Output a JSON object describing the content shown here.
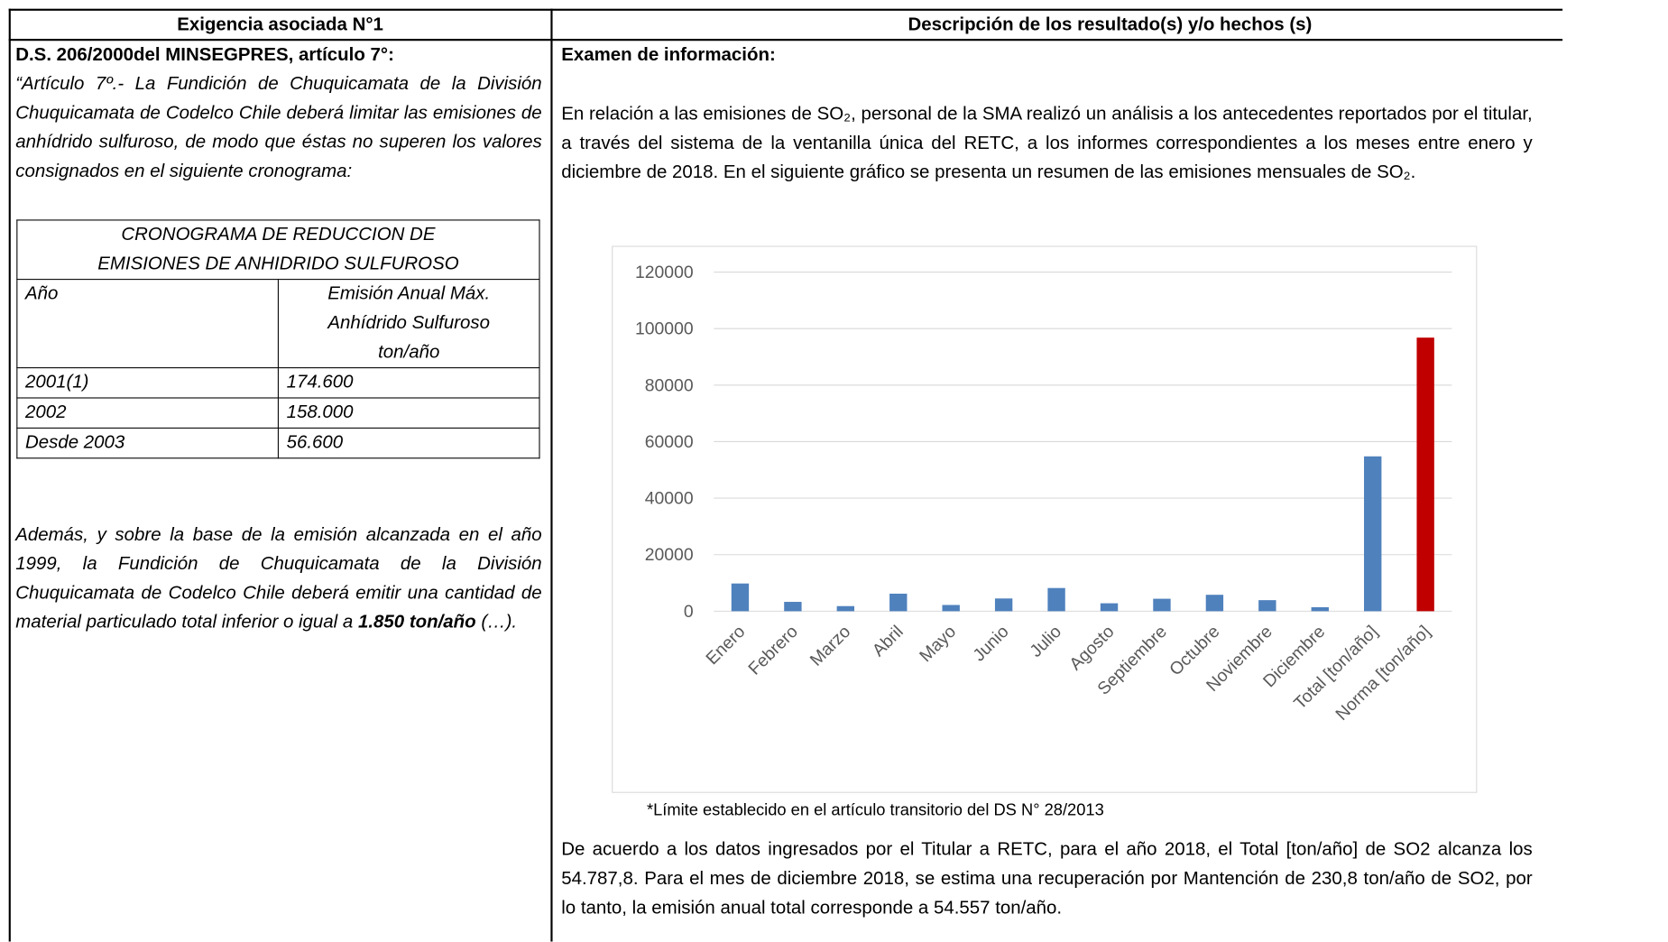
{
  "table": {
    "headers": [
      "Exigencia asociada N°1",
      "Descripción de los resultado(s) y/o hechos (s)"
    ]
  },
  "left": {
    "heading": "D.S. 206/2000del MINSEGPRES, artículo 7°:",
    "quote": "“Artículo 7º.- La Fundición de Chuquicamata de la División Chuquicamata de Codelco Chile deberá limitar las emisiones de anhídrido sulfuroso, de modo que éstas no superen los valores consignados en el siguiente cronograma:",
    "schedule": {
      "title": "CRONOGRAMA DE REDUCCION DE EMISIONES DE ANHIDRIDO SULFUROSO",
      "header": [
        "Año",
        "Emisión Anual Máx. Anhídrido Sulfuroso ton/año"
      ],
      "rows": [
        [
          "2001(1)",
          "174.600"
        ],
        [
          "2002",
          "158.000"
        ],
        [
          "Desde 2003",
          "56.600"
        ]
      ]
    },
    "note": [
      "Además, y sobre la base de la emisión alcanzada en el año 1999, la Fundición de Chuquicamata de la División Chuquicamata de Codelco Chile deberá emitir una cantidad de material particulado total inferior o igual a ",
      "1.850 ton/año",
      " (…)."
    ]
  },
  "right": {
    "heading": "Examen de información:",
    "paragraph1": "En relación a las emisiones de SO₂, personal de la SMA realizó un análisis a los antecedentes reportados por el titular, a través del sistema de la ventanilla única del RETC, a los informes correspondientes a los meses entre enero y diciembre de 2018. En el siguiente gráfico se presenta un resumen de las emisiones mensuales de SO₂.",
    "footnote": "*Límite establecido en el artículo transitorio del DS N° 28/2013",
    "paragraph2": "De acuerdo a los datos ingresados por el Titular a RETC, para el año 2018, el Total [ton/año] de SO2 alcanza los 54.787,8. Para el mes de diciembre 2018, se estima una recuperación por Mantención de 230,8 ton/año de SO2, por lo tanto, la emisión anual total corresponde a 54.557 ton/año."
  },
  "chart_data": {
    "type": "bar",
    "categories": [
      "Enero",
      "Febrero",
      "Marzo",
      "Abril",
      "Mayo",
      "Junio",
      "Julio",
      "Agosto",
      "Septiembre",
      "Octubre",
      "Noviembre",
      "Diciembre",
      "Total [ton/año]",
      "Norma [ton/año]"
    ],
    "values": [
      9800,
      3300,
      1800,
      6200,
      2200,
      4500,
      8200,
      2800,
      4400,
      5800,
      3900,
      1400,
      54788,
      96800
    ],
    "colors": [
      "#4f81bd",
      "#4f81bd",
      "#4f81bd",
      "#4f81bd",
      "#4f81bd",
      "#4f81bd",
      "#4f81bd",
      "#4f81bd",
      "#4f81bd",
      "#4f81bd",
      "#4f81bd",
      "#4f81bd",
      "#4f81bd",
      "#c00000"
    ],
    "ylim": [
      0,
      120000
    ],
    "yticks": [
      0,
      20000,
      40000,
      60000,
      80000,
      100000,
      120000
    ],
    "grid": true
  }
}
